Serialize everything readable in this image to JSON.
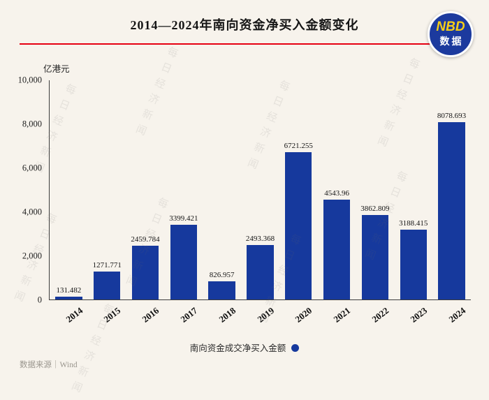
{
  "header": {
    "title": "2014—2024年南向资金净买入金额变化",
    "logo": {
      "line1": "NBD",
      "line2": "数据"
    }
  },
  "chart_data": {
    "type": "bar",
    "title": "2014—2024年南向资金净买入金额变化",
    "unit_label": "亿港元",
    "categories": [
      "2014",
      "2015",
      "2016",
      "2017",
      "2018",
      "2019",
      "2020",
      "2021",
      "2022",
      "2023",
      "2024"
    ],
    "values": [
      131.482,
      1271.771,
      2459.784,
      3399.421,
      826.957,
      2493.368,
      6721.255,
      4543.96,
      3862.809,
      3188.415,
      8078.693
    ],
    "value_labels": [
      "131.482",
      "1271.771",
      "2459.784",
      "3399.421",
      "826.957",
      "2493.368",
      "6721.255",
      "4543.96",
      "3862.809",
      "3188.415",
      "8078.693"
    ],
    "ylim": [
      0,
      10000
    ],
    "yticks": [
      "10,000",
      "8,000",
      "6,000",
      "4,000",
      "2,000",
      "0"
    ],
    "grid": "off",
    "legend_position": "bottom",
    "bar_color": "#16399d",
    "legend": "南向资金成交净买入金额"
  },
  "footer": {
    "source": "数据来源｜Wind"
  },
  "watermark": {
    "text": "每日经济新闻"
  }
}
